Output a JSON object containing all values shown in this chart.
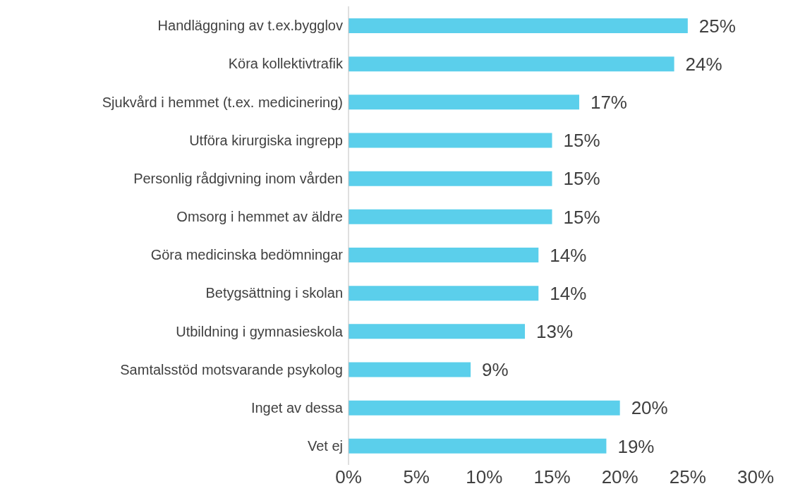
{
  "chart_data": {
    "type": "bar",
    "orientation": "horizontal",
    "categories": [
      "Handläggning av t.ex.bygglov",
      "Köra kollektivtrafik",
      "Sjukvård i hemmet (t.ex. medicinering)",
      "Utföra kirurgiska ingrepp",
      "Personlig rådgivning inom vården",
      "Omsorg i hemmet av äldre",
      "Göra medicinska bedömningar",
      "Betygsättning i skolan",
      "Utbildning i gymnasieskola",
      "Samtalsstöd motsvarande psykolog",
      "Inget av dessa",
      "Vet ej"
    ],
    "values": [
      25,
      24,
      17,
      15,
      15,
      15,
      14,
      14,
      13,
      9,
      20,
      19
    ],
    "value_labels": [
      "25%",
      "24%",
      "17%",
      "15%",
      "15%",
      "15%",
      "14%",
      "14%",
      "13%",
      "9%",
      "20%",
      "19%"
    ],
    "color": "#5bcfeb",
    "xlim": [
      0,
      30
    ],
    "xticks": [
      {
        "value": 0,
        "label": "0%"
      },
      {
        "value": 5,
        "label": "5%"
      },
      {
        "value": 10,
        "label": "10%"
      },
      {
        "value": 15,
        "label": "15%"
      },
      {
        "value": 20,
        "label": "20%"
      },
      {
        "value": 25,
        "label": "25%"
      },
      {
        "value": 30,
        "label": "30%"
      }
    ]
  }
}
